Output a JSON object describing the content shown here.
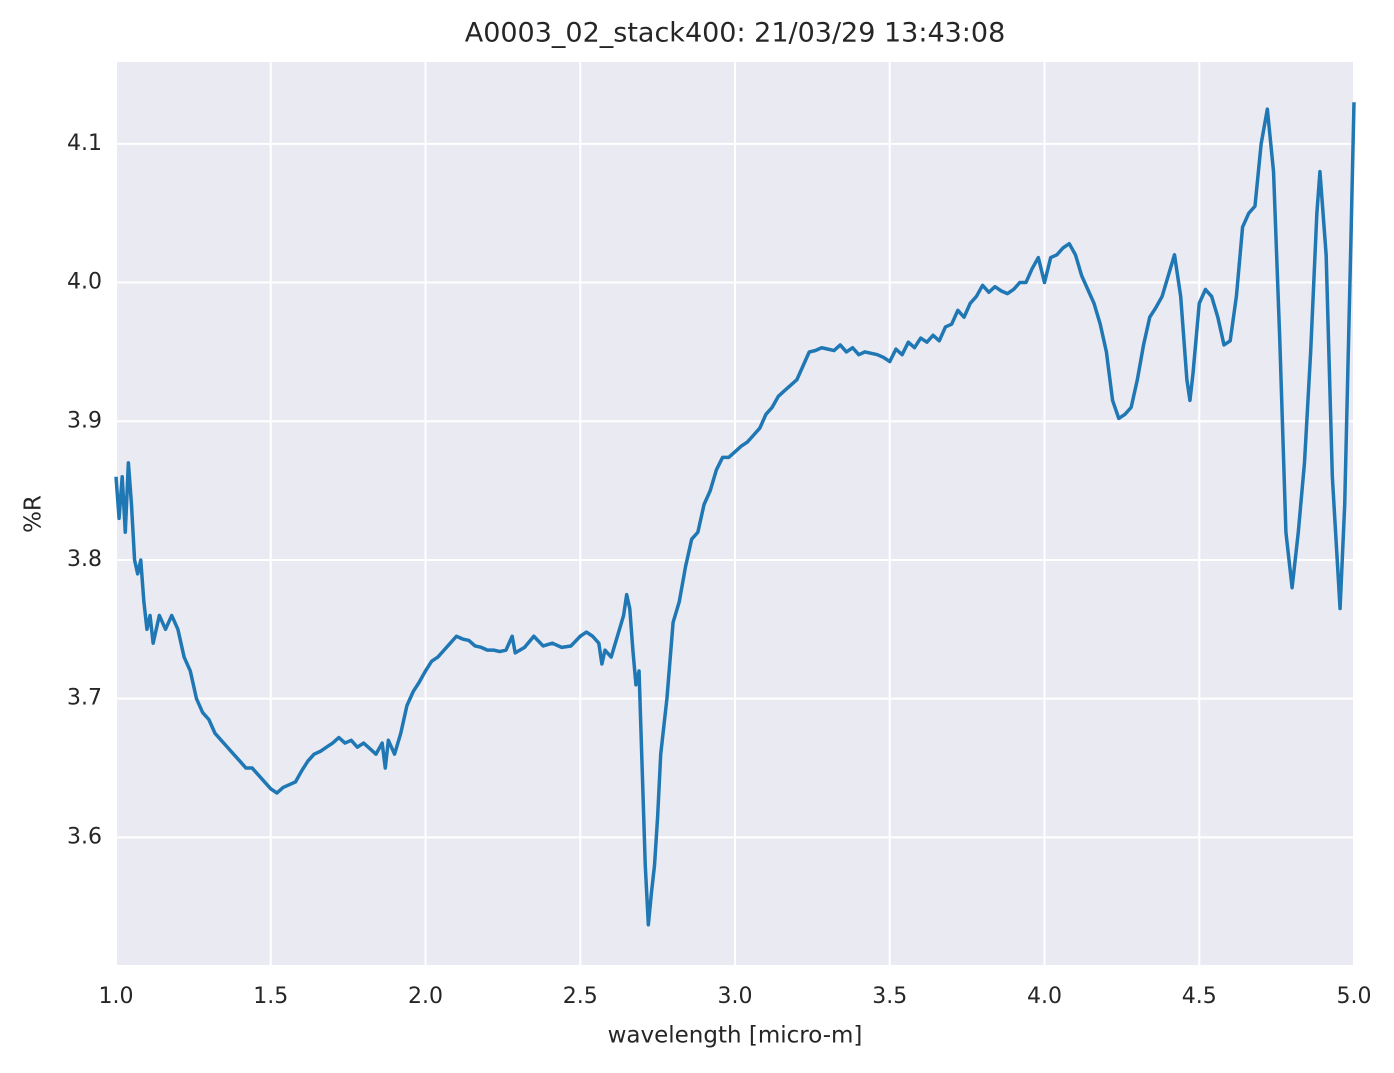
{
  "chart_data": {
    "type": "line",
    "title": "A0003_02_stack400:  21/03/29 13:43:08",
    "xlabel": "wavelength [micro-m]",
    "ylabel": "%R",
    "xlim": [
      1,
      5
    ],
    "ylim": [
      3.508,
      4.159
    ],
    "xticks": [
      {
        "value": 1,
        "label": "1.0"
      },
      1.5,
      {
        "value": 2,
        "label": "2.0"
      },
      2.5,
      {
        "value": 3,
        "label": "3.0"
      },
      3.5,
      {
        "value": 4,
        "label": "4.0"
      },
      4.5,
      {
        "value": 5,
        "label": "5.0"
      }
    ],
    "yticks": [
      3.6,
      3.7,
      3.8,
      3.9,
      {
        "value": 4,
        "label": "4.0"
      },
      4.1
    ],
    "grid": true,
    "x": [
      1.0,
      1.01,
      1.02,
      1.03,
      1.04,
      1.05,
      1.06,
      1.07,
      1.08,
      1.09,
      1.1,
      1.11,
      1.12,
      1.14,
      1.16,
      1.18,
      1.2,
      1.22,
      1.24,
      1.26,
      1.28,
      1.3,
      1.32,
      1.34,
      1.36,
      1.38,
      1.4,
      1.42,
      1.44,
      1.46,
      1.48,
      1.5,
      1.52,
      1.54,
      1.56,
      1.58,
      1.6,
      1.62,
      1.64,
      1.66,
      1.68,
      1.7,
      1.72,
      1.74,
      1.76,
      1.78,
      1.8,
      1.82,
      1.84,
      1.86,
      1.87,
      1.88,
      1.9,
      1.92,
      1.94,
      1.96,
      1.98,
      2.0,
      2.02,
      2.04,
      2.06,
      2.08,
      2.1,
      2.12,
      2.14,
      2.16,
      2.18,
      2.2,
      2.22,
      2.24,
      2.26,
      2.28,
      2.29,
      2.32,
      2.35,
      2.38,
      2.41,
      2.44,
      2.47,
      2.5,
      2.52,
      2.54,
      2.56,
      2.57,
      2.58,
      2.6,
      2.62,
      2.64,
      2.65,
      2.66,
      2.67,
      2.68,
      2.69,
      2.7,
      2.71,
      2.72,
      2.73,
      2.74,
      2.75,
      2.76,
      2.78,
      2.8,
      2.82,
      2.84,
      2.86,
      2.88,
      2.9,
      2.92,
      2.94,
      2.96,
      2.98,
      3.0,
      3.02,
      3.04,
      3.06,
      3.08,
      3.1,
      3.12,
      3.14,
      3.16,
      3.18,
      3.2,
      3.22,
      3.24,
      3.26,
      3.28,
      3.3,
      3.32,
      3.34,
      3.36,
      3.38,
      3.4,
      3.42,
      3.44,
      3.46,
      3.48,
      3.5,
      3.52,
      3.54,
      3.56,
      3.58,
      3.6,
      3.62,
      3.64,
      3.66,
      3.68,
      3.7,
      3.72,
      3.74,
      3.76,
      3.78,
      3.8,
      3.82,
      3.84,
      3.86,
      3.88,
      3.9,
      3.92,
      3.94,
      3.96,
      3.98,
      4.0,
      4.02,
      4.04,
      4.06,
      4.08,
      4.1,
      4.12,
      4.14,
      4.16,
      4.18,
      4.2,
      4.22,
      4.24,
      4.26,
      4.28,
      4.3,
      4.32,
      4.34,
      4.36,
      4.38,
      4.4,
      4.42,
      4.44,
      4.46,
      4.47,
      4.48,
      4.5,
      4.52,
      4.54,
      4.56,
      4.58,
      4.6,
      4.62,
      4.64,
      4.66,
      4.68,
      4.7,
      4.72,
      4.74,
      4.76,
      4.78,
      4.8,
      4.82,
      4.84,
      4.86,
      4.88,
      4.89,
      4.91,
      4.93,
      4.955,
      4.97,
      4.99,
      5.0
    ],
    "series": [
      {
        "name": "%R",
        "color": "#1f77b4",
        "values": [
          3.86,
          3.83,
          3.86,
          3.82,
          3.87,
          3.84,
          3.8,
          3.79,
          3.8,
          3.77,
          3.75,
          3.76,
          3.74,
          3.76,
          3.75,
          3.76,
          3.75,
          3.73,
          3.72,
          3.7,
          3.69,
          3.685,
          3.675,
          3.67,
          3.665,
          3.66,
          3.655,
          3.65,
          3.65,
          3.645,
          3.64,
          3.635,
          3.632,
          3.636,
          3.638,
          3.64,
          3.648,
          3.655,
          3.66,
          3.662,
          3.665,
          3.668,
          3.672,
          3.668,
          3.67,
          3.665,
          3.668,
          3.664,
          3.66,
          3.668,
          3.65,
          3.67,
          3.66,
          3.675,
          3.695,
          3.705,
          3.712,
          3.72,
          3.727,
          3.73,
          3.735,
          3.74,
          3.745,
          3.743,
          3.742,
          3.738,
          3.737,
          3.735,
          3.735,
          3.734,
          3.735,
          3.745,
          3.733,
          3.737,
          3.745,
          3.738,
          3.74,
          3.737,
          3.738,
          3.745,
          3.748,
          3.745,
          3.74,
          3.725,
          3.735,
          3.73,
          3.745,
          3.76,
          3.775,
          3.765,
          3.735,
          3.71,
          3.72,
          3.65,
          3.58,
          3.537,
          3.56,
          3.58,
          3.615,
          3.66,
          3.7,
          3.755,
          3.77,
          3.795,
          3.815,
          3.82,
          3.84,
          3.85,
          3.865,
          3.874,
          3.874,
          3.878,
          3.882,
          3.885,
          3.89,
          3.895,
          3.905,
          3.91,
          3.918,
          3.922,
          3.926,
          3.93,
          3.94,
          3.95,
          3.951,
          3.953,
          3.952,
          3.951,
          3.955,
          3.95,
          3.953,
          3.948,
          3.95,
          3.949,
          3.948,
          3.946,
          3.943,
          3.952,
          3.948,
          3.957,
          3.953,
          3.96,
          3.957,
          3.962,
          3.958,
          3.968,
          3.97,
          3.98,
          3.975,
          3.985,
          3.99,
          3.998,
          3.993,
          3.997,
          3.994,
          3.992,
          3.995,
          4.0,
          4.0,
          4.01,
          4.018,
          4.0,
          4.018,
          4.02,
          4.025,
          4.028,
          4.02,
          4.005,
          3.995,
          3.985,
          3.97,
          3.95,
          3.915,
          3.902,
          3.905,
          3.91,
          3.93,
          3.955,
          3.975,
          3.982,
          3.99,
          4.005,
          4.02,
          3.99,
          3.93,
          3.915,
          3.935,
          3.985,
          3.995,
          3.99,
          3.975,
          3.955,
          3.958,
          3.99,
          4.04,
          4.05,
          4.055,
          4.1,
          4.125,
          4.08,
          3.96,
          3.82,
          3.78,
          3.82,
          3.87,
          3.95,
          4.05,
          4.08,
          4.02,
          3.86,
          3.765,
          3.84,
          4.03,
          4.13
        ]
      }
    ]
  }
}
